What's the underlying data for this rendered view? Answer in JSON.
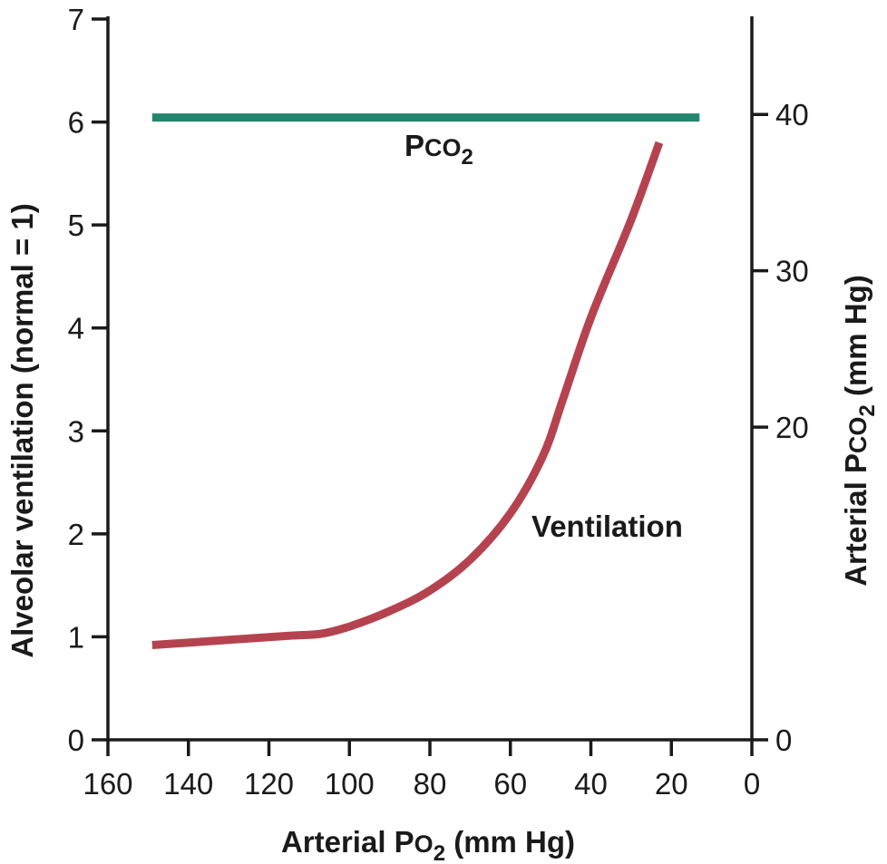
{
  "chart_data": {
    "type": "line",
    "x_axis": {
      "label_main": "Arterial P",
      "label_sym": "O",
      "label_sub": "2",
      "label_unit": " (mm Hg)",
      "range": [
        160,
        0
      ],
      "reversed": true,
      "ticks": [
        160,
        140,
        120,
        100,
        80,
        60,
        40,
        20,
        0
      ]
    },
    "y_left": {
      "label": "Alveolar ventilation (normal = 1)",
      "range": [
        0,
        7
      ],
      "ticks": [
        0,
        1,
        2,
        3,
        4,
        5,
        6,
        7
      ]
    },
    "y_right": {
      "label_main": "Arterial P",
      "label_sym": "CO",
      "label_sub": "2",
      "label_unit": " (mm Hg)",
      "range": [
        0,
        46.1
      ],
      "ticks": [
        0,
        20,
        30,
        40
      ]
    },
    "grid": false,
    "series": [
      {
        "name": "Ventilation",
        "axis": "left",
        "color": "#b5434f",
        "x": [
          149,
          130,
          115,
          107,
          100,
          90,
          80,
          70,
          60,
          52,
          47,
          40,
          30,
          23
        ],
        "y": [
          0.92,
          0.97,
          1.01,
          1.03,
          1.1,
          1.25,
          1.45,
          1.75,
          2.2,
          2.75,
          3.3,
          4.1,
          5.05,
          5.8
        ]
      },
      {
        "name_main": "P",
        "name_sym": "CO",
        "name_sub": "2",
        "axis": "right",
        "color": "#23866e",
        "x": [
          149,
          13
        ],
        "y": [
          39.8,
          39.8
        ]
      }
    ]
  }
}
